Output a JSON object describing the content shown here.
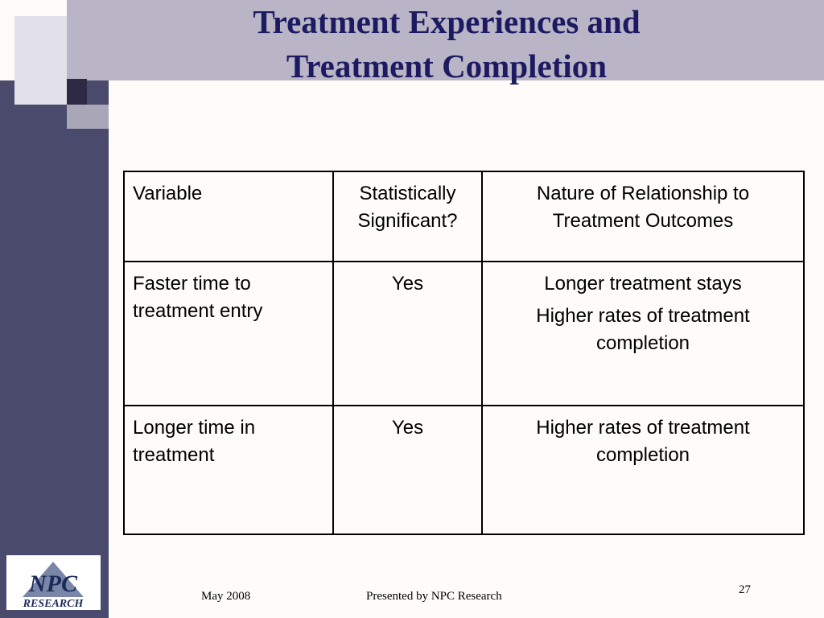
{
  "slide": {
    "title": [
      "Treatment Experiences and",
      "Treatment Completion"
    ],
    "table": {
      "header": [
        "Variable",
        "Statistically Significant?",
        "Nature of Relationship to Treatment Outcomes"
      ],
      "rows": [
        [
          "Faster time to treatment entry",
          "Yes",
          [
            "Longer treatment stays",
            "Higher rates of treatment completion"
          ]
        ],
        [
          "Longer time in treatment",
          "Yes",
          [
            "Higher rates of treatment completion"
          ]
        ]
      ]
    },
    "footer": {
      "date": "May 2008",
      "presenter": "Presented by NPC Research",
      "page": "27"
    },
    "logo": {
      "name": "NPC",
      "sub": "RESEARCH"
    }
  }
}
